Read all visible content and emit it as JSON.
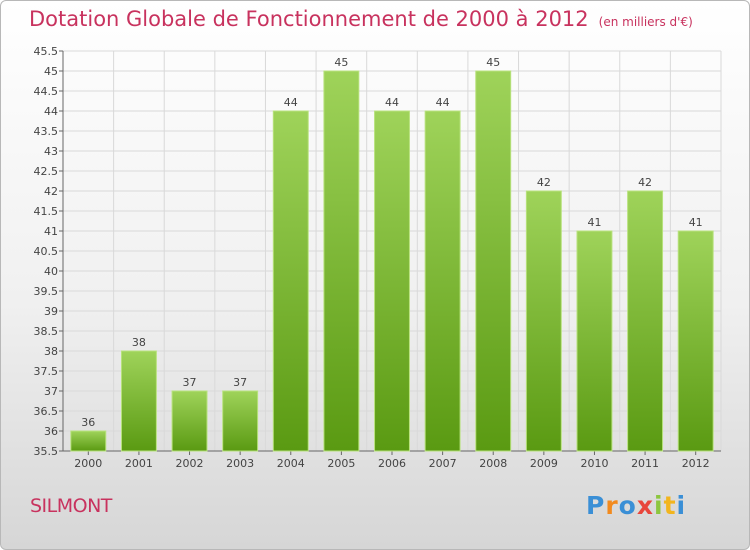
{
  "header": {
    "title": "Dotation Globale de Fonctionnement de 2000 à 2012",
    "unit": "(en milliers d'€)"
  },
  "footer": {
    "town": "SILMONT",
    "logo": "Proxiti"
  },
  "colors": {
    "title": "#c8325e",
    "bar_light": "#9fd35a",
    "bar_dark": "#5a9a12",
    "grid": "#d9d9d9"
  },
  "chart_data": {
    "type": "bar",
    "title": "Dotation Globale de Fonctionnement de 2000 à 2012",
    "xlabel": "",
    "ylabel": "",
    "categories": [
      "2000",
      "2001",
      "2002",
      "2003",
      "2004",
      "2005",
      "2006",
      "2007",
      "2008",
      "2009",
      "2010",
      "2011",
      "2012"
    ],
    "values": [
      36,
      38,
      37,
      37,
      44,
      45,
      44,
      44,
      45,
      42,
      41,
      42,
      41
    ],
    "ylim": [
      35.5,
      45.5
    ],
    "yticks": [
      "35.5",
      "36",
      "36.5",
      "37",
      "37.5",
      "38",
      "38.5",
      "39",
      "39.5",
      "40",
      "40.5",
      "41",
      "41.5",
      "42",
      "42.5",
      "43",
      "43.5",
      "44",
      "44.5",
      "45",
      "45.5"
    ],
    "grid": true,
    "legend": "none"
  }
}
